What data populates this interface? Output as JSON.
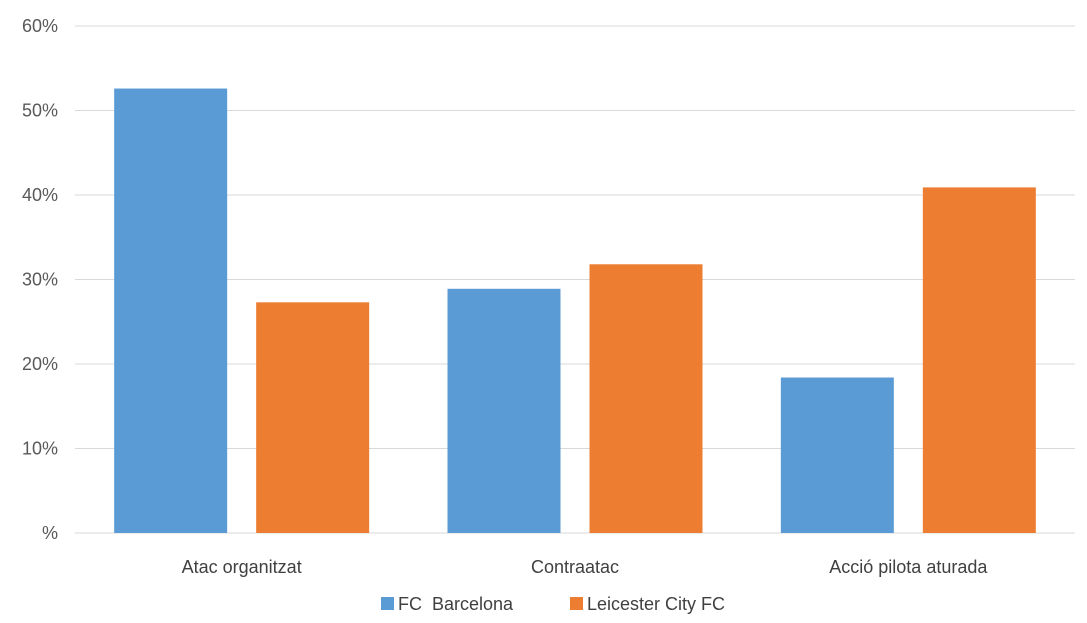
{
  "chart_data": {
    "type": "bar",
    "categories": [
      "Atac organitzat",
      "Contraatac",
      "Acció pilota aturada"
    ],
    "series": [
      {
        "name": "FC  Barcelona",
        "values": [
          52.6,
          28.9,
          18.4
        ],
        "color": "#5b9bd5"
      },
      {
        "name": "Leicester City FC",
        "values": [
          27.3,
          31.8,
          40.9
        ],
        "color": "#ed7d31"
      }
    ],
    "ylim": [
      0,
      60
    ],
    "yticks": [
      {
        "value": 0,
        "label": "%"
      },
      {
        "value": 10,
        "label": "10%"
      },
      {
        "value": 20,
        "label": "20%"
      },
      {
        "value": 30,
        "label": "30%"
      },
      {
        "value": 40,
        "label": "40%"
      },
      {
        "value": 50,
        "label": "50%"
      },
      {
        "value": 60,
        "label": "60%"
      }
    ],
    "grid": true,
    "legend": "bottom"
  }
}
